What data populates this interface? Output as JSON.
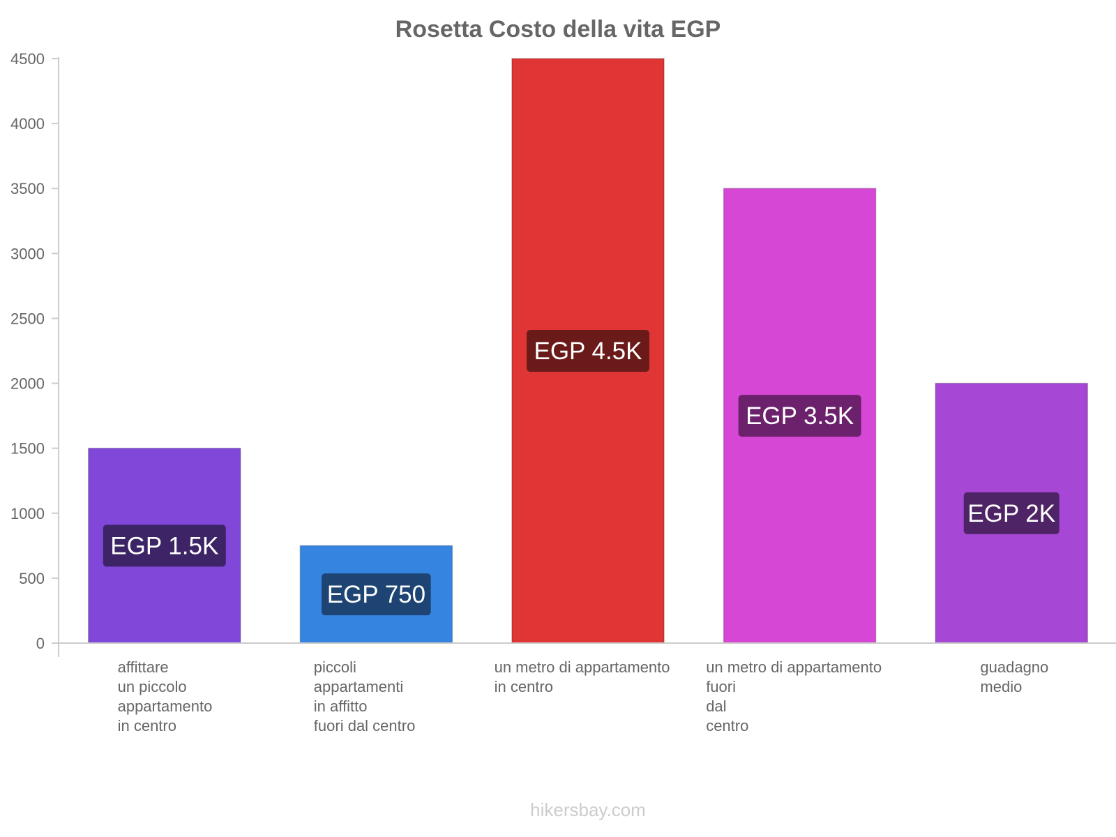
{
  "chart_data": {
    "type": "bar",
    "title": "Rosetta Costo della vita EGP",
    "xlabel": "",
    "ylabel": "",
    "ylim": [
      0,
      4500
    ],
    "yticks": [
      0,
      500,
      1000,
      1500,
      2000,
      2500,
      3000,
      3500,
      4000,
      4500
    ],
    "categories": [
      [
        "affittare",
        "un piccolo",
        "appartamento",
        "in centro"
      ],
      [
        "piccoli",
        "appartamenti",
        "in affitto",
        "fuori dal centro"
      ],
      [
        "un metro di appartamento",
        "in centro"
      ],
      [
        "un metro di appartamento",
        "fuori",
        "dal",
        "centro"
      ],
      [
        "guadagno",
        "medio"
      ]
    ],
    "values": [
      1500,
      750,
      4500,
      3500,
      2000
    ],
    "value_labels": [
      "EGP 1.5K",
      "EGP 750",
      "EGP 4.5K",
      "EGP 3.5K",
      "EGP 2K"
    ],
    "colors": [
      "#8047d9",
      "#3584e0",
      "#e03535",
      "#d647d6",
      "#a647d6"
    ],
    "label_bg_colors": [
      "#3d2466",
      "#1d4472",
      "#6b1a1a",
      "#6b216b",
      "#4e2466"
    ]
  },
  "footer": {
    "source": "hikersbay.com"
  }
}
